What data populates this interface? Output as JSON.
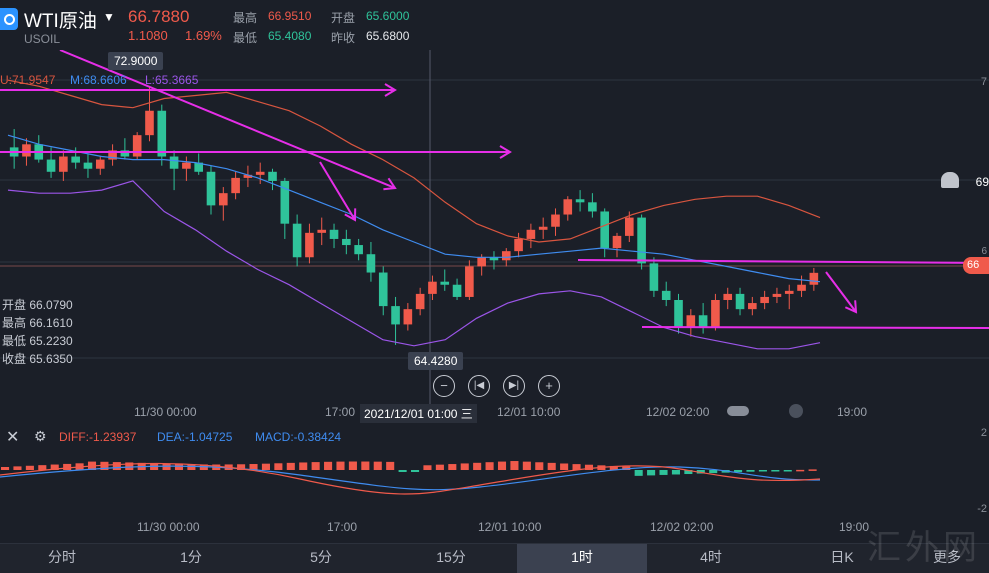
{
  "header": {
    "symbol": "WTI原油",
    "sub": "USOIL",
    "price": "66.7880",
    "change": "1.1080",
    "change_pct": "1.69%",
    "stats": [
      {
        "label": "最高",
        "value": "66.9510",
        "color": "red"
      },
      {
        "label": "开盘",
        "value": "65.6000",
        "color": "green"
      },
      {
        "label": "最低",
        "value": "65.4080",
        "color": "green"
      },
      {
        "label": "昨收",
        "value": "65.6800",
        "color": "white"
      }
    ]
  },
  "ma_legend": {
    "u": "U:71.9547",
    "m": "M:68.6606",
    "l": "L:65.3665"
  },
  "tooltip_ohlc": {
    "open": "开盘 66.0790",
    "high": "最高 66.1610",
    "low": "最低 65.2230",
    "close": "收盘 65.6350"
  },
  "annotations": {
    "high_label": "72.9000",
    "low_label": "64.4280",
    "right_price": "66"
  },
  "time_axis": {
    "labels": [
      "11/30 00:00",
      "17:00",
      "12/01 10:00",
      "12/02 02:00",
      "19:00"
    ],
    "crosshair": "2021/12/01 01:00 三"
  },
  "macd": {
    "diff": "DIFF:-1.23937",
    "dea": "DEA:-1.04725",
    "macd": "MACD:-0.38424",
    "axis_top": "2",
    "axis_bottom": "-2"
  },
  "macd_time_axis": [
    "11/30 00:00",
    "17:00",
    "12/01 10:00",
    "12/02 02:00",
    "19:00"
  ],
  "tabs": [
    "分时",
    "1分",
    "5分",
    "15分",
    "1时",
    "4时",
    "日K",
    "更多"
  ],
  "active_tab": "1时",
  "watermark": "汇外网",
  "price_axis_labels": [
    "7",
    "69",
    "6"
  ],
  "colors": {
    "up": "#f05a4b",
    "down": "#2fc39a",
    "boll_upper": "#d8553f",
    "boll_mid": "#3f8cf0",
    "boll_lower": "#9b55e8",
    "annotation": "#e62ee8"
  },
  "chart_data": {
    "type": "candlestick",
    "title": "",
    "series": [
      {
        "name": "kline",
        "ohlc": [
          [
            70.9,
            71.5,
            70.2,
            70.6
          ],
          [
            70.6,
            71.2,
            70.3,
            71.0
          ],
          [
            71.0,
            71.3,
            70.4,
            70.5
          ],
          [
            70.5,
            70.9,
            69.9,
            70.1
          ],
          [
            70.1,
            70.8,
            69.8,
            70.6
          ],
          [
            70.6,
            70.9,
            70.2,
            70.4
          ],
          [
            70.4,
            70.7,
            69.9,
            70.2
          ],
          [
            70.2,
            70.6,
            70.0,
            70.5
          ],
          [
            70.5,
            71.0,
            70.3,
            70.8
          ],
          [
            70.8,
            71.2,
            70.5,
            70.6
          ],
          [
            70.6,
            71.4,
            70.5,
            71.3
          ],
          [
            71.3,
            72.9,
            71.1,
            72.1
          ],
          [
            72.1,
            72.3,
            70.3,
            70.6
          ],
          [
            70.6,
            70.8,
            69.5,
            70.2
          ],
          [
            70.2,
            70.6,
            69.8,
            70.4
          ],
          [
            70.4,
            70.7,
            70.0,
            70.1
          ],
          [
            70.1,
            70.3,
            68.7,
            69.0
          ],
          [
            69.0,
            69.6,
            68.5,
            69.4
          ],
          [
            69.4,
            70.1,
            69.2,
            69.9
          ],
          [
            69.9,
            70.3,
            69.6,
            70.0
          ],
          [
            70.0,
            70.4,
            69.7,
            70.1
          ],
          [
            70.1,
            70.2,
            69.5,
            69.8
          ],
          [
            69.8,
            69.9,
            67.9,
            68.4
          ],
          [
            68.4,
            68.7,
            67.0,
            67.3
          ],
          [
            67.3,
            68.4,
            67.1,
            68.1
          ],
          [
            68.1,
            68.6,
            67.7,
            68.2
          ],
          [
            68.2,
            68.4,
            67.6,
            67.9
          ],
          [
            67.9,
            68.2,
            67.4,
            67.7
          ],
          [
            67.7,
            67.9,
            67.2,
            67.4
          ],
          [
            67.4,
            67.8,
            66.5,
            66.8
          ],
          [
            66.8,
            67.0,
            65.4,
            65.7
          ],
          [
            65.7,
            66.0,
            64.43,
            65.1
          ],
          [
            65.1,
            65.8,
            64.9,
            65.6
          ],
          [
            65.6,
            66.3,
            65.4,
            66.1
          ],
          [
            66.1,
            66.7,
            65.9,
            66.5
          ],
          [
            66.5,
            66.9,
            66.2,
            66.4
          ],
          [
            66.4,
            66.6,
            65.9,
            66.0
          ],
          [
            66.0,
            67.2,
            65.9,
            67.0
          ],
          [
            67.0,
            67.4,
            66.7,
            67.3
          ],
          [
            67.3,
            67.5,
            66.9,
            67.2
          ],
          [
            67.2,
            67.6,
            67.0,
            67.5
          ],
          [
            67.5,
            68.1,
            67.3,
            67.9
          ],
          [
            67.9,
            68.4,
            67.6,
            68.2
          ],
          [
            68.2,
            68.6,
            67.9,
            68.3
          ],
          [
            68.3,
            68.9,
            68.0,
            68.7
          ],
          [
            68.7,
            69.3,
            68.5,
            69.2
          ],
          [
            69.2,
            69.5,
            68.8,
            69.1
          ],
          [
            69.1,
            69.4,
            68.6,
            68.8
          ],
          [
            68.8,
            68.9,
            67.3,
            67.6
          ],
          [
            67.6,
            68.1,
            67.3,
            68.0
          ],
          [
            68.0,
            68.8,
            67.8,
            68.6
          ],
          [
            68.6,
            68.7,
            66.9,
            67.1
          ],
          [
            67.1,
            67.3,
            66.0,
            66.2
          ],
          [
            66.2,
            66.5,
            65.7,
            65.9
          ],
          [
            65.9,
            66.1,
            64.8,
            65.0
          ],
          [
            65.0,
            65.6,
            64.7,
            65.4
          ],
          [
            65.4,
            65.8,
            64.8,
            65.0
          ],
          [
            65.0,
            66.1,
            64.9,
            65.9
          ],
          [
            65.9,
            66.3,
            65.6,
            66.1
          ],
          [
            66.1,
            66.3,
            65.4,
            65.6
          ],
          [
            65.6,
            66.0,
            65.4,
            65.8
          ],
          [
            65.8,
            66.2,
            65.6,
            66.0
          ],
          [
            66.0,
            66.3,
            65.8,
            66.1
          ],
          [
            66.1,
            66.4,
            65.6,
            66.2
          ],
          [
            66.2,
            66.7,
            66.0,
            66.4
          ],
          [
            66.4,
            66.95,
            66.2,
            66.79
          ]
        ]
      },
      {
        "name": "boll_upper",
        "values": [
          73.1,
          72.9,
          72.6,
          72.3,
          72.2,
          72.5,
          72.6,
          72.7,
          72.4,
          72.1,
          71.6,
          71.0,
          70.5,
          69.9,
          69.1,
          68.4,
          68.0,
          67.8,
          67.9,
          68.3,
          68.7,
          69.0,
          69.2,
          69.3,
          69.3,
          69.0,
          68.6
        ]
      },
      {
        "name": "boll_mid",
        "values": [
          71.3,
          71.0,
          70.8,
          70.6,
          70.5,
          70.5,
          70.4,
          70.2,
          69.9,
          69.5,
          69.1,
          68.7,
          68.2,
          67.8,
          67.4,
          67.3,
          67.3,
          67.4,
          67.5,
          67.6,
          67.5,
          67.4,
          67.2,
          67.0,
          66.8,
          66.6,
          66.5
        ]
      },
      {
        "name": "boll_lower",
        "values": [
          69.5,
          69.4,
          69.4,
          69.5,
          69.8,
          68.8,
          68.2,
          67.5,
          66.9,
          66.4,
          65.8,
          65.2,
          64.6,
          64.4,
          64.6,
          65.3,
          65.8,
          66.1,
          66.2,
          66.0,
          65.5,
          65.0,
          64.7,
          64.5,
          64.3,
          64.3,
          64.5
        ]
      }
    ],
    "ylim": [
      64.0,
      73.5
    ],
    "grid": true
  }
}
